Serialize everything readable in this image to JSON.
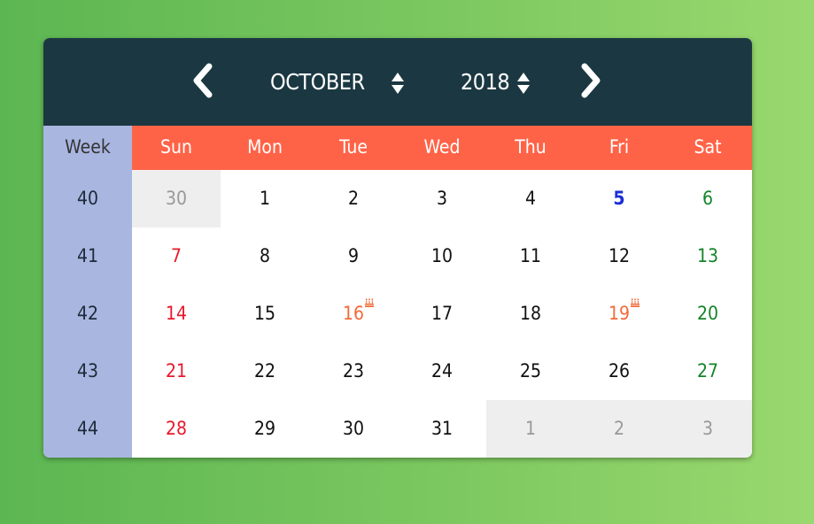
{
  "calendar": {
    "month": "OCTOBER",
    "year": "2018",
    "week_header": "Week",
    "weekdays": [
      "Sun",
      "Mon",
      "Tue",
      "Wed",
      "Thu",
      "Fri",
      "Sat"
    ],
    "weeks": [
      {
        "number": "40",
        "days": [
          {
            "d": "30",
            "other": true
          },
          {
            "d": "1"
          },
          {
            "d": "2"
          },
          {
            "d": "3"
          },
          {
            "d": "4"
          },
          {
            "d": "5",
            "today": true
          },
          {
            "d": "6"
          }
        ]
      },
      {
        "number": "41",
        "days": [
          {
            "d": "7"
          },
          {
            "d": "8"
          },
          {
            "d": "9"
          },
          {
            "d": "10"
          },
          {
            "d": "11"
          },
          {
            "d": "12"
          },
          {
            "d": "13"
          }
        ]
      },
      {
        "number": "42",
        "days": [
          {
            "d": "14"
          },
          {
            "d": "15"
          },
          {
            "d": "16",
            "event": true
          },
          {
            "d": "17"
          },
          {
            "d": "18"
          },
          {
            "d": "19",
            "event": true
          },
          {
            "d": "20"
          }
        ]
      },
      {
        "number": "43",
        "days": [
          {
            "d": "21"
          },
          {
            "d": "22"
          },
          {
            "d": "23"
          },
          {
            "d": "24"
          },
          {
            "d": "25"
          },
          {
            "d": "26"
          },
          {
            "d": "27"
          }
        ]
      },
      {
        "number": "44",
        "days": [
          {
            "d": "28"
          },
          {
            "d": "29"
          },
          {
            "d": "30"
          },
          {
            "d": "31"
          },
          {
            "d": "1",
            "other": true
          },
          {
            "d": "2",
            "other": true
          },
          {
            "d": "3",
            "other": true
          }
        ]
      }
    ],
    "icons": {
      "prev": "chevron-left-icon",
      "next": "chevron-right-icon",
      "spinner": "up-down-arrows-icon",
      "event": "birthday-cake-icon"
    },
    "colors": {
      "header_bg": "#1b3842",
      "weekday_bg": "#ff6347",
      "week_col_bg": "#a9b6e0",
      "sunday": "#e8182b",
      "saturday": "#14842a",
      "today": "#1a2fd6",
      "event": "#f26a3a",
      "other_month": "#999999"
    }
  }
}
